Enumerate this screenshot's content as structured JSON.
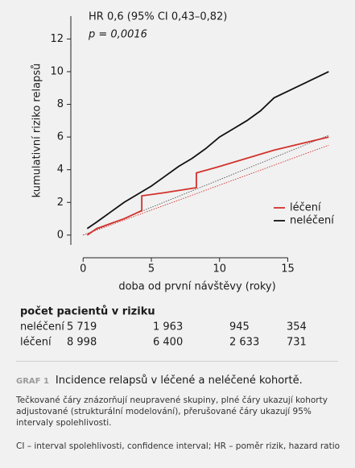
{
  "chart_data": {
    "type": "line",
    "annotations": [
      "HR 0,6 (95% CI 0,43–0,82)",
      "p = 0,0016"
    ],
    "xlabel": "doba od první návštěvy (roky)",
    "ylabel": "kumulativní riziko relapsů",
    "xlim": [
      -0.9,
      18.1
    ],
    "xticks": [
      0,
      5,
      10,
      15
    ],
    "ylim": [
      -0.6,
      13.4
    ],
    "yticks": [
      0,
      2,
      4,
      6,
      8,
      10,
      12
    ],
    "legend": "lower right",
    "series": [
      {
        "name": "léčení",
        "color": "#d2322d",
        "x": [
          0.3,
          1,
          2,
          3,
          4.3,
          4.3,
          6,
          8.3,
          8.3,
          10,
          12,
          14,
          16,
          18
        ],
        "values": [
          0,
          0.4,
          0.7,
          1.0,
          1.5,
          2.4,
          2.6,
          2.9,
          3.8,
          4.2,
          4.7,
          5.2,
          5.6,
          6.0
        ]
      },
      {
        "name": "neléčení",
        "color": "#111111",
        "x": [
          0.3,
          1,
          2,
          3,
          4,
          5,
          6,
          7,
          8,
          9,
          10,
          11,
          12,
          13,
          14,
          15,
          16,
          17,
          18
        ],
        "values": [
          0.4,
          0.8,
          1.4,
          2.0,
          2.5,
          3.0,
          3.6,
          4.2,
          4.7,
          5.3,
          6.0,
          6.5,
          7.0,
          7.6,
          8.4,
          8.8,
          9.2,
          9.6,
          10.0
        ]
      }
    ],
    "dotted_series": [
      {
        "color": "#555555",
        "x": [
          0,
          18
        ],
        "values": [
          0,
          6.1
        ]
      },
      {
        "color": "#d2322d",
        "x": [
          0,
          18
        ],
        "values": [
          0,
          5.5
        ]
      }
    ]
  },
  "risk_table": {
    "title": "počet pacientů v riziku",
    "rows": [
      {
        "label": "neléčení",
        "color": "#111111",
        "values": [
          "5 719",
          "1 963",
          "945",
          "354"
        ]
      },
      {
        "label": "léčení",
        "color": "#d2322d",
        "values": [
          "8 998",
          "6 400",
          "2 633",
          "731"
        ]
      }
    ]
  },
  "caption": {
    "label": "GRAF 1",
    "title": "Incidence relapsů v léčené a neléčené kohortě.",
    "text": "Tečkované čáry znázorňují neupravené skupiny, plné čáry ukazují kohorty adjustované (strukturální modelování), přerušované čáry ukazují 95% intervaly spolehlivosti.",
    "abbreviations": "CI – interval spolehlivosti, confidence interval; HR – poměr rizik, hazard ratio"
  }
}
